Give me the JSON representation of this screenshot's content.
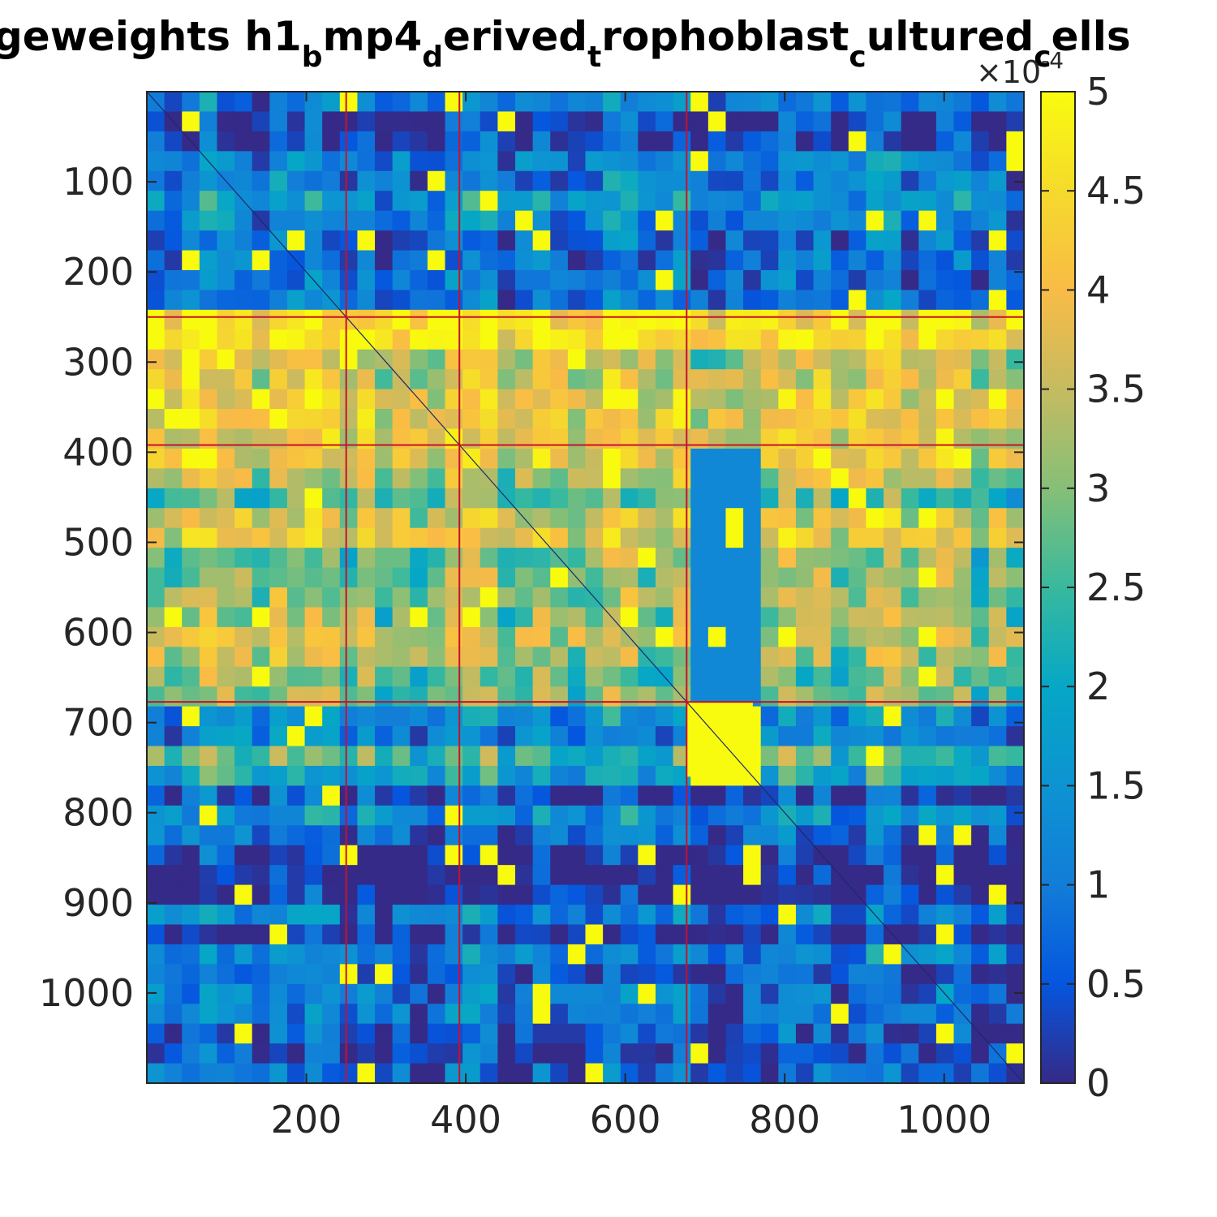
{
  "chart_data": {
    "type": "heatmap",
    "title_segments": [
      {
        "text": "geweights h1",
        "sub": false
      },
      {
        "text": "b",
        "sub": true
      },
      {
        "text": "mp4",
        "sub": false
      },
      {
        "text": "d",
        "sub": true
      },
      {
        "text": "erived",
        "sub": false
      },
      {
        "text": "t",
        "sub": true
      },
      {
        "text": "rophoblast",
        "sub": false
      },
      {
        "text": "c",
        "sub": true
      },
      {
        "text": "ultured",
        "sub": false
      },
      {
        "text": "c",
        "sub": true
      },
      {
        "text": "ells",
        "sub": false
      }
    ],
    "xlim": [
      0,
      1100
    ],
    "ylim": [
      0,
      1100
    ],
    "x_ticks": [
      200,
      400,
      600,
      800,
      1000
    ],
    "y_ticks": [
      100,
      200,
      300,
      400,
      500,
      600,
      700,
      800,
      900,
      1000
    ],
    "colorbar": {
      "range": [
        0,
        5
      ],
      "ticks": [
        "0",
        "0.5",
        "1",
        "1.5",
        "2",
        "2.5",
        "3",
        "3.5",
        "4",
        "4.5",
        "5"
      ],
      "multiplier": "×10",
      "multiplier_exponent": "-4",
      "colormap": "parula"
    },
    "group_boundaries": [
      250,
      392,
      677
    ],
    "row_bands": [
      {
        "range": [
          0,
          250
        ],
        "level": "low"
      },
      {
        "range": [
          250,
          392
        ],
        "level": "high"
      },
      {
        "range": [
          392,
          677
        ],
        "level": "mixed-high"
      },
      {
        "range": [
          677,
          760
        ],
        "level": "medium"
      },
      {
        "range": [
          760,
          1100
        ],
        "level": "low"
      }
    ],
    "highlight_block": {
      "rows": [
        677,
        760
      ],
      "cols": [
        677,
        760
      ],
      "level": "max"
    },
    "diagonal": true,
    "colors": {
      "boundary_line": "#c8102e",
      "axis": "#262626"
    }
  }
}
